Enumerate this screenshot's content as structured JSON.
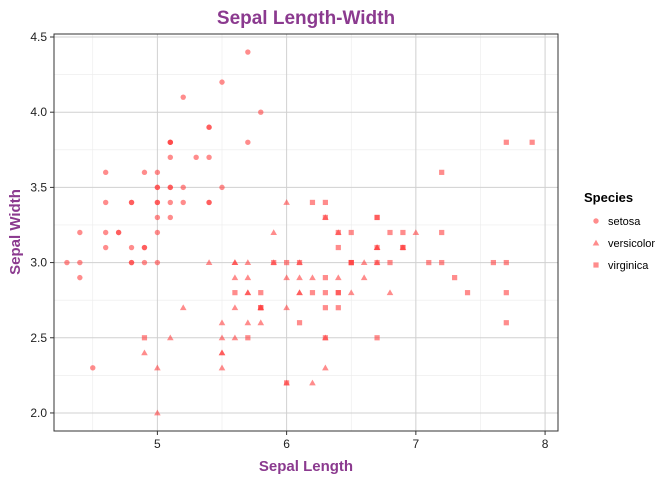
{
  "theme": {
    "title_color": "#8B3A8F",
    "point_color": "#FF4040",
    "grid_major": "#D0D0D0",
    "grid_minor": "#EBEBEB"
  },
  "chart_data": {
    "type": "scatter",
    "title": "Sepal Length-Width",
    "xlabel": "Sepal Length",
    "ylabel": "Sepal Width",
    "xlim": [
      4.2,
      8.1
    ],
    "ylim": [
      1.88,
      4.52
    ],
    "xticks": [
      5,
      6,
      7,
      8
    ],
    "yticks": [
      2.0,
      2.5,
      3.0,
      3.5,
      4.0,
      4.5
    ],
    "ytick_labels": [
      "2.0",
      "2.5",
      "3.0",
      "3.5",
      "4.0",
      "4.5"
    ],
    "grid": true,
    "legend": {
      "title": "Species",
      "position": "right"
    },
    "series": [
      {
        "name": "setosa",
        "marker": "circle",
        "x": [
          5.1,
          4.9,
          4.7,
          4.6,
          5.0,
          5.4,
          4.6,
          5.0,
          4.4,
          4.9,
          5.4,
          4.8,
          4.8,
          4.3,
          5.8,
          5.7,
          5.4,
          5.1,
          5.7,
          5.1,
          5.4,
          5.1,
          4.6,
          5.1,
          4.8,
          5.0,
          5.0,
          5.2,
          5.2,
          4.7,
          4.8,
          5.4,
          5.2,
          5.5,
          4.9,
          5.0,
          5.5,
          4.9,
          4.4,
          5.1,
          5.0,
          4.5,
          4.4,
          5.0,
          5.1,
          4.8,
          5.1,
          4.6,
          5.3,
          5.0
        ],
        "y": [
          3.5,
          3.0,
          3.2,
          3.1,
          3.6,
          3.9,
          3.4,
          3.4,
          2.9,
          3.1,
          3.7,
          3.4,
          3.0,
          3.0,
          4.0,
          4.4,
          3.9,
          3.5,
          3.8,
          3.8,
          3.4,
          3.7,
          3.6,
          3.3,
          3.4,
          3.0,
          3.4,
          3.5,
          3.4,
          3.2,
          3.1,
          3.4,
          4.1,
          4.2,
          3.1,
          3.2,
          3.5,
          3.6,
          3.0,
          3.4,
          3.5,
          2.3,
          3.2,
          3.5,
          3.8,
          3.0,
          3.8,
          3.2,
          3.7,
          3.3
        ]
      },
      {
        "name": "versicolor",
        "marker": "triangle",
        "x": [
          7.0,
          6.4,
          6.9,
          5.5,
          6.5,
          5.7,
          6.3,
          4.9,
          6.6,
          5.2,
          5.0,
          5.9,
          6.0,
          6.1,
          5.6,
          6.7,
          5.6,
          5.8,
          6.2,
          5.6,
          5.9,
          6.1,
          6.3,
          6.1,
          6.4,
          6.6,
          6.8,
          6.7,
          6.0,
          5.7,
          5.5,
          5.5,
          5.8,
          6.0,
          5.4,
          6.0,
          6.7,
          6.3,
          5.6,
          5.5,
          5.5,
          6.1,
          5.8,
          5.0,
          5.6,
          5.7,
          5.7,
          6.2,
          5.1,
          5.7
        ],
        "y": [
          3.2,
          3.2,
          3.1,
          2.3,
          2.8,
          2.8,
          3.3,
          2.4,
          2.9,
          2.7,
          2.0,
          3.0,
          2.2,
          2.9,
          2.9,
          3.1,
          3.0,
          2.7,
          2.2,
          2.5,
          3.2,
          2.8,
          2.5,
          2.8,
          2.9,
          3.0,
          2.8,
          3.0,
          2.9,
          2.6,
          2.4,
          2.4,
          2.7,
          2.7,
          3.0,
          3.4,
          3.1,
          2.3,
          3.0,
          2.5,
          2.6,
          3.0,
          2.6,
          2.3,
          2.7,
          3.0,
          2.9,
          2.9,
          2.5,
          2.8
        ]
      },
      {
        "name": "virginica",
        "marker": "square",
        "x": [
          6.3,
          5.8,
          7.1,
          6.3,
          6.5,
          7.6,
          4.9,
          7.3,
          6.7,
          7.2,
          6.5,
          6.4,
          6.8,
          5.7,
          5.8,
          6.4,
          6.5,
          7.7,
          7.7,
          6.0,
          6.9,
          5.6,
          7.7,
          6.3,
          6.7,
          7.2,
          6.2,
          6.1,
          6.4,
          7.2,
          7.4,
          7.9,
          6.4,
          6.3,
          6.1,
          7.7,
          6.3,
          6.4,
          6.0,
          6.9,
          6.7,
          6.9,
          5.8,
          6.8,
          6.7,
          6.7,
          6.3,
          6.5,
          6.2,
          5.9
        ],
        "y": [
          3.3,
          2.7,
          3.0,
          2.9,
          3.0,
          3.0,
          2.5,
          2.9,
          2.5,
          3.6,
          3.2,
          2.7,
          3.0,
          2.5,
          2.8,
          3.2,
          3.0,
          3.8,
          2.6,
          2.2,
          3.2,
          2.8,
          2.8,
          2.7,
          3.3,
          3.2,
          2.8,
          3.0,
          2.8,
          3.0,
          2.8,
          3.8,
          2.8,
          2.8,
          2.6,
          3.0,
          3.4,
          3.1,
          3.0,
          3.1,
          3.1,
          3.1,
          2.7,
          3.2,
          3.3,
          3.0,
          2.5,
          3.0,
          3.4,
          3.0
        ]
      }
    ]
  }
}
